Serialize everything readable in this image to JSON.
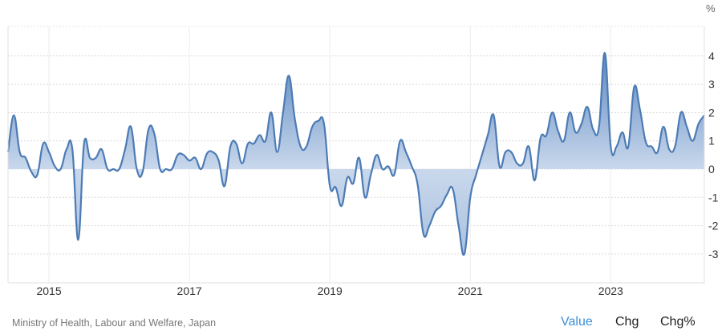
{
  "chart_data": {
    "type": "area",
    "unit_label": "%",
    "x_tick_labels": [
      "2015",
      "2017",
      "2019",
      "2021",
      "2023"
    ],
    "y_ticks": [
      -3,
      -2,
      -1,
      0,
      1,
      2,
      3,
      4
    ],
    "ylim": [
      -3.9,
      5.0
    ],
    "xlim": [
      "2014-06",
      "2024-05"
    ],
    "grid": true,
    "colors": {
      "line": "#4c7bb5",
      "fill_top": "#5a86c0",
      "fill_zero": "#c9d8ec",
      "fill_bottom": "#aac1df"
    },
    "points": [
      [
        "2014-06",
        0.6
      ],
      [
        "2014-07",
        1.9
      ],
      [
        "2014-08",
        0.6
      ],
      [
        "2014-09",
        0.4
      ],
      [
        "2014-10",
        -0.1
      ],
      [
        "2014-11",
        -0.2
      ],
      [
        "2014-12",
        0.9
      ],
      [
        "2015-01",
        0.6
      ],
      [
        "2015-02",
        0.1
      ],
      [
        "2015-03",
        0.0
      ],
      [
        "2015-04",
        0.7
      ],
      [
        "2015-05",
        0.7
      ],
      [
        "2015-06",
        -2.5
      ],
      [
        "2015-07",
        0.9
      ],
      [
        "2015-08",
        0.4
      ],
      [
        "2015-09",
        0.4
      ],
      [
        "2015-10",
        0.7
      ],
      [
        "2015-11",
        0.0
      ],
      [
        "2015-12",
        0.0
      ],
      [
        "2016-01",
        0.0
      ],
      [
        "2016-02",
        0.7
      ],
      [
        "2016-03",
        1.5
      ],
      [
        "2016-04",
        0.0
      ],
      [
        "2016-05",
        -0.1
      ],
      [
        "2016-06",
        1.4
      ],
      [
        "2016-07",
        1.25
      ],
      [
        "2016-08",
        0.0
      ],
      [
        "2016-09",
        0.0
      ],
      [
        "2016-10",
        0.0
      ],
      [
        "2016-11",
        0.5
      ],
      [
        "2016-12",
        0.5
      ],
      [
        "2017-01",
        0.3
      ],
      [
        "2017-02",
        0.4
      ],
      [
        "2017-03",
        0.0
      ],
      [
        "2017-04",
        0.55
      ],
      [
        "2017-05",
        0.6
      ],
      [
        "2017-06",
        0.3
      ],
      [
        "2017-07",
        -0.6
      ],
      [
        "2017-08",
        0.8
      ],
      [
        "2017-09",
        0.9
      ],
      [
        "2017-10",
        0.2
      ],
      [
        "2017-11",
        0.9
      ],
      [
        "2017-12",
        0.9
      ],
      [
        "2018-01",
        1.2
      ],
      [
        "2018-02",
        1.0
      ],
      [
        "2018-03",
        2.0
      ],
      [
        "2018-04",
        0.6
      ],
      [
        "2018-05",
        2.0
      ],
      [
        "2018-06",
        3.3
      ],
      [
        "2018-07",
        1.8
      ],
      [
        "2018-08",
        0.8
      ],
      [
        "2018-09",
        0.8
      ],
      [
        "2018-10",
        1.5
      ],
      [
        "2018-11",
        1.7
      ],
      [
        "2018-12",
        1.6
      ],
      [
        "2019-01",
        -0.6
      ],
      [
        "2019-02",
        -0.65
      ],
      [
        "2019-03",
        -1.3
      ],
      [
        "2019-04",
        -0.3
      ],
      [
        "2019-05",
        -0.5
      ],
      [
        "2019-06",
        0.4
      ],
      [
        "2019-07",
        -1.0
      ],
      [
        "2019-08",
        -0.2
      ],
      [
        "2019-09",
        0.5
      ],
      [
        "2019-10",
        0.0
      ],
      [
        "2019-11",
        0.1
      ],
      [
        "2019-12",
        -0.2
      ],
      [
        "2020-01",
        1.0
      ],
      [
        "2020-02",
        0.6
      ],
      [
        "2020-03",
        0.1
      ],
      [
        "2020-04",
        -0.55
      ],
      [
        "2020-05",
        -2.3
      ],
      [
        "2020-06",
        -2.0
      ],
      [
        "2020-07",
        -1.5
      ],
      [
        "2020-08",
        -1.3
      ],
      [
        "2020-09",
        -0.9
      ],
      [
        "2020-10",
        -0.7
      ],
      [
        "2020-11",
        -2.0
      ],
      [
        "2020-12",
        -3.0
      ],
      [
        "2021-01",
        -1.0
      ],
      [
        "2021-02",
        -0.2
      ],
      [
        "2021-03",
        0.5
      ],
      [
        "2021-04",
        1.2
      ],
      [
        "2021-05",
        1.9
      ],
      [
        "2021-06",
        0.1
      ],
      [
        "2021-07",
        0.6
      ],
      [
        "2021-08",
        0.6
      ],
      [
        "2021-09",
        0.2
      ],
      [
        "2021-10",
        0.2
      ],
      [
        "2021-11",
        0.8
      ],
      [
        "2021-12",
        -0.4
      ],
      [
        "2022-01",
        1.1
      ],
      [
        "2022-02",
        1.2
      ],
      [
        "2022-03",
        2.0
      ],
      [
        "2022-04",
        1.35
      ],
      [
        "2022-05",
        1.0
      ],
      [
        "2022-06",
        2.0
      ],
      [
        "2022-07",
        1.3
      ],
      [
        "2022-08",
        1.6
      ],
      [
        "2022-09",
        2.2
      ],
      [
        "2022-10",
        1.4
      ],
      [
        "2022-11",
        1.5
      ],
      [
        "2022-12",
        4.1
      ],
      [
        "2023-01",
        0.8
      ],
      [
        "2023-02",
        0.8
      ],
      [
        "2023-03",
        1.3
      ],
      [
        "2023-04",
        0.8
      ],
      [
        "2023-05",
        2.9
      ],
      [
        "2023-06",
        2.1
      ],
      [
        "2023-07",
        0.95
      ],
      [
        "2023-08",
        0.8
      ],
      [
        "2023-09",
        0.6
      ],
      [
        "2023-10",
        1.5
      ],
      [
        "2023-11",
        0.7
      ],
      [
        "2023-12",
        0.8
      ],
      [
        "2024-01",
        2.0
      ],
      [
        "2024-02",
        1.5
      ],
      [
        "2024-03",
        1.0
      ],
      [
        "2024-04",
        1.6
      ],
      [
        "2024-05",
        1.9
      ]
    ]
  },
  "footer": {
    "source": "Ministry of Health, Labour and Welfare, Japan",
    "tabs": [
      {
        "label": "Value",
        "active": true,
        "color": "#3a8fd6"
      },
      {
        "label": "Chg",
        "active": false
      },
      {
        "label": "Chg%",
        "active": false
      }
    ]
  }
}
